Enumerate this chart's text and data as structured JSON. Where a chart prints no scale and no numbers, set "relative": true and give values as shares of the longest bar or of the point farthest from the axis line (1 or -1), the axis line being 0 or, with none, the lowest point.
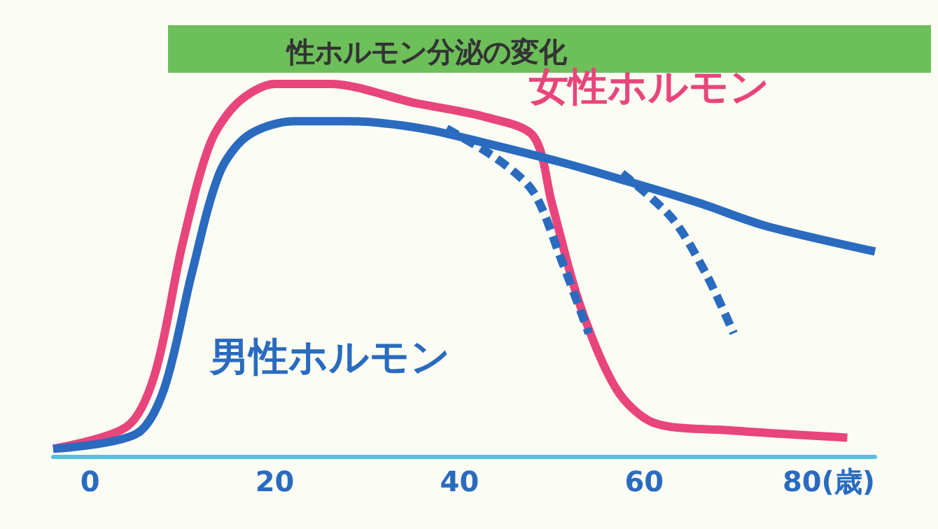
{
  "chart_data": {
    "type": "line",
    "title": "性ホルモン分泌の変化",
    "relative": true,
    "legend": false,
    "grid": false,
    "marker": "none",
    "xlim": [
      -4,
      85
    ],
    "xticks": [
      0,
      20,
      40,
      60,
      {
        "value": 80,
        "label": "80(歳)"
      }
    ],
    "series": [
      {
        "name": "女性ホルモン",
        "color": "#e8457c",
        "line_style": "solid",
        "x": [
          -4,
          4,
          7,
          10,
          13,
          16,
          20,
          26,
          35,
          43,
          48,
          50,
          53,
          57,
          61,
          69,
          82
        ],
        "values": [
          0.02,
          0.08,
          0.22,
          0.57,
          0.84,
          0.95,
          1,
          1,
          0.95,
          0.91,
          0.86,
          0.68,
          0.41,
          0.18,
          0.09,
          0.07,
          0.05
        ]
      },
      {
        "name": "男性ホルモン",
        "color": "#2a6bbf",
        "line_style": "solid",
        "x": [
          -4,
          5,
          8,
          11,
          14,
          17,
          22,
          28,
          36,
          43,
          51,
          58,
          66,
          73,
          85
        ],
        "values": [
          0.02,
          0.06,
          0.18,
          0.49,
          0.76,
          0.86,
          0.9,
          0.9,
          0.88,
          0.84,
          0.79,
          0.74,
          0.68,
          0.62,
          0.55
        ]
      },
      {
        "color": "#2a6bbf",
        "line_style": "dashed",
        "x": [
          38.6,
          44,
          48,
          51,
          54
        ],
        "values": [
          0.88,
          0.8,
          0.71,
          0.53,
          0.33
        ]
      },
      {
        "color": "#2a6bbf",
        "line_style": "dashed",
        "x": [
          57.6,
          63,
          66.7,
          69.7
        ],
        "values": [
          0.76,
          0.64,
          0.49,
          0.33
        ]
      }
    ]
  }
}
